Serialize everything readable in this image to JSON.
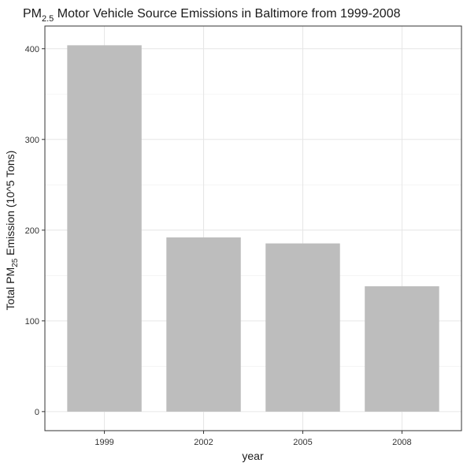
{
  "chart_data": {
    "type": "bar",
    "title": {
      "prefix": "PM",
      "subscript": "2.5",
      "rest": " Motor Vehicle Source Emissions in Baltimore from 1999-2008"
    },
    "xlabel": "year",
    "ylabel": {
      "prefix": "Total PM",
      "subscript": "25",
      "rest": " Emission (10^5 Tons)"
    },
    "categories": [
      "1999",
      "2002",
      "2005",
      "2008"
    ],
    "values": [
      403.8,
      192.0,
      185.4,
      138.2
    ],
    "ylim": [
      -21,
      425
    ],
    "yticks": [
      0,
      100,
      200,
      300,
      400
    ],
    "grid": true,
    "legend": "none",
    "colors": {
      "bar": "#bdbdbd",
      "grid": "#e6e6e6",
      "panel_border": "#333333",
      "background": "#ffffff"
    }
  }
}
